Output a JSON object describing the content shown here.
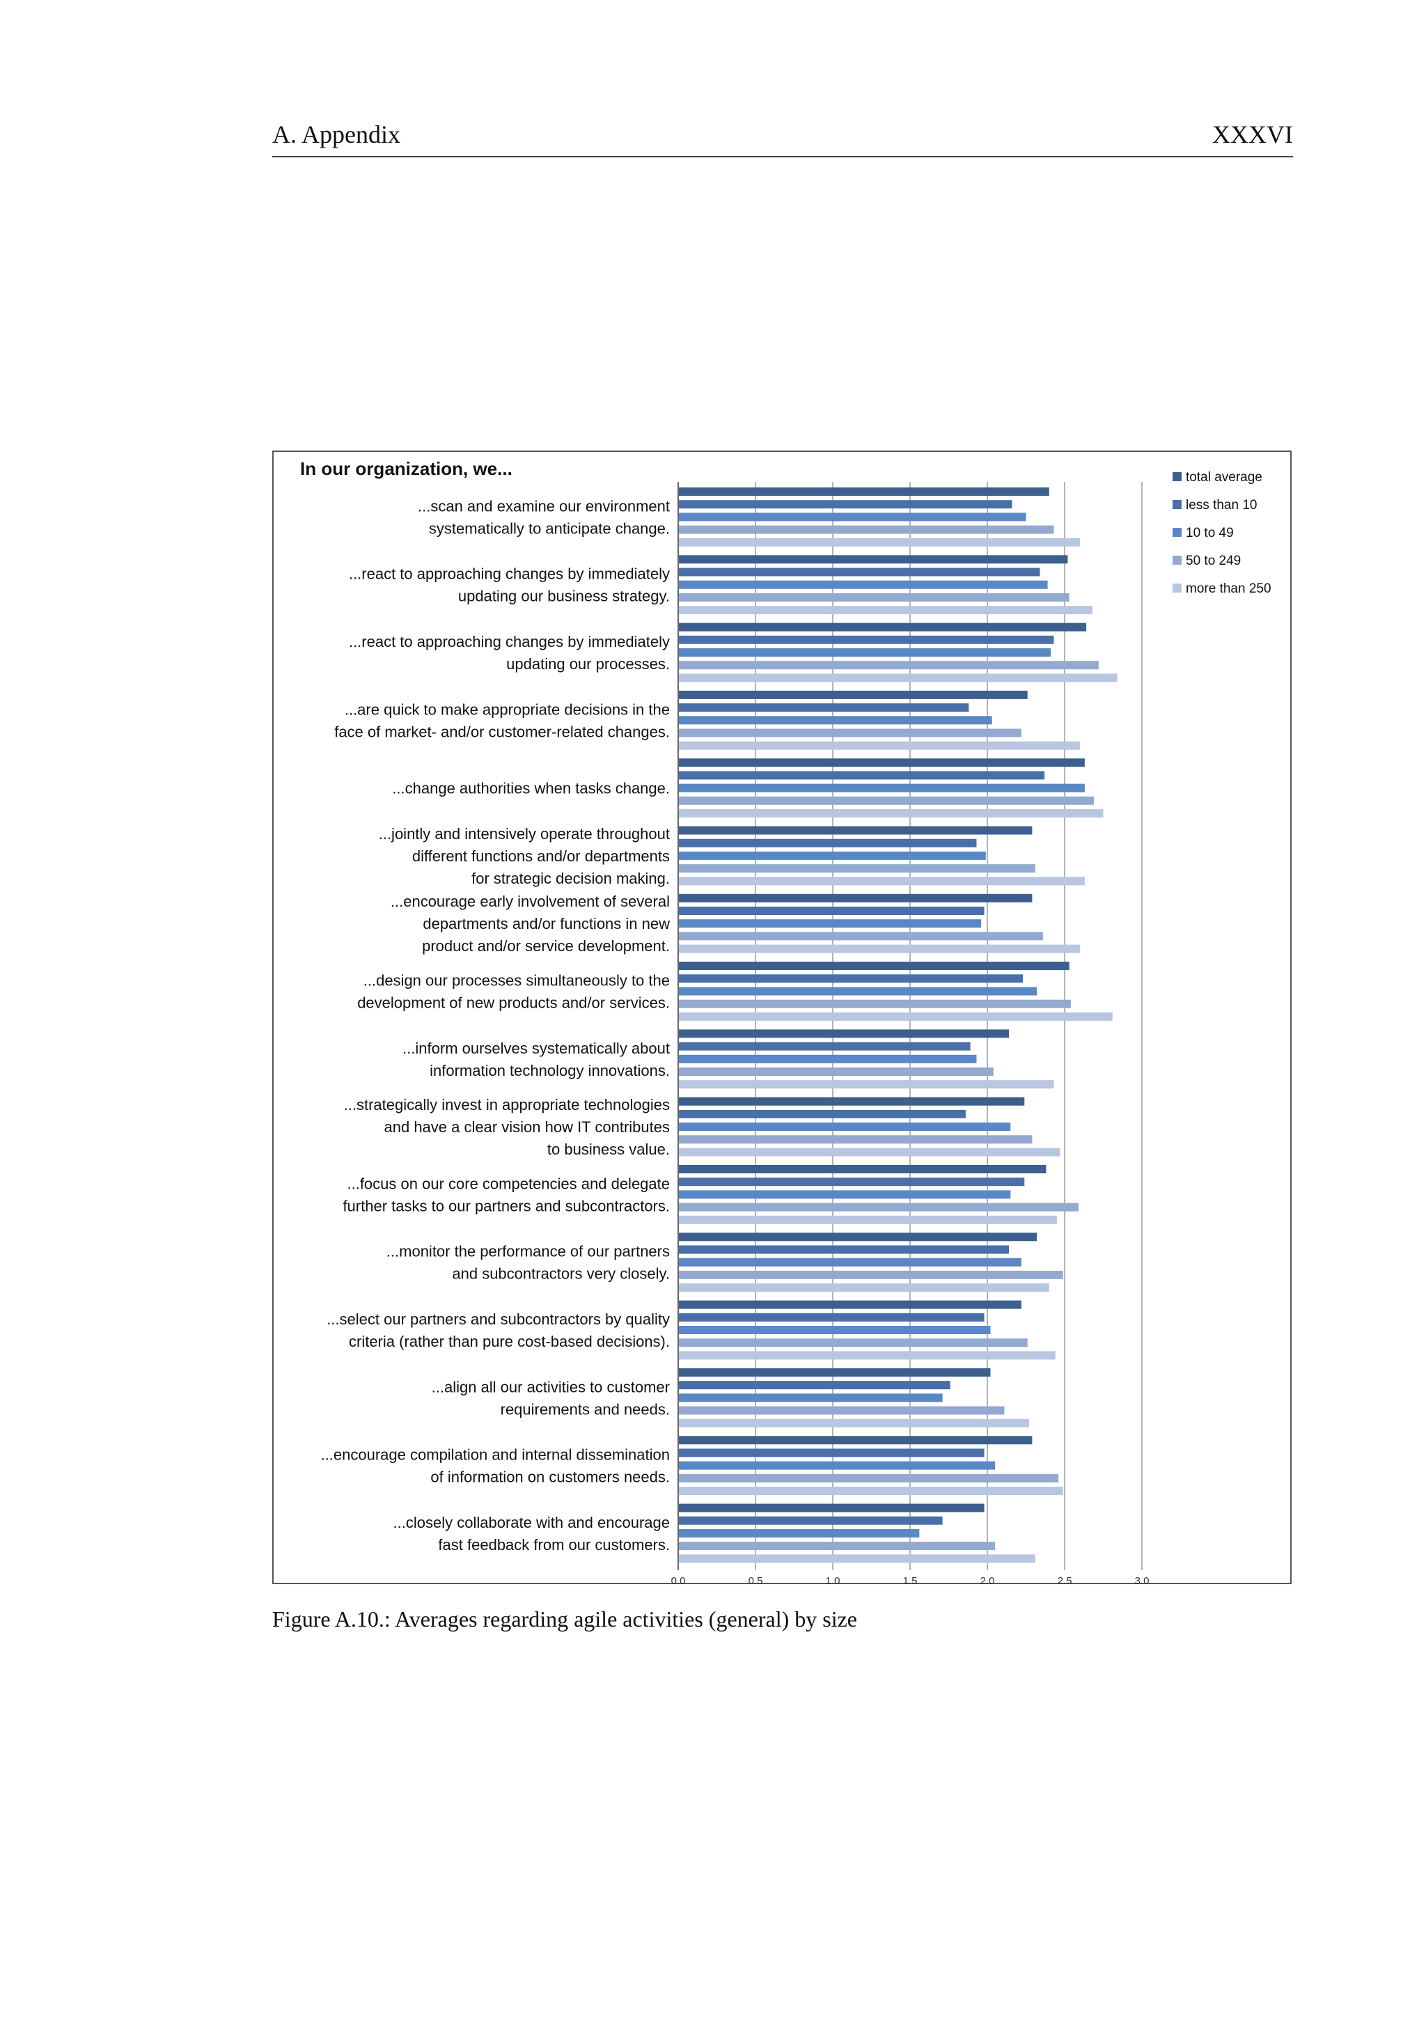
{
  "page": {
    "header_left": "A.  Appendix",
    "header_right": "XXXVI",
    "caption": "Figure A.10.: Averages regarding agile activities (general) by size"
  },
  "chart_data": {
    "type": "bar",
    "orientation": "horizontal",
    "title": "In our organization, we...",
    "xlim": [
      0,
      3.0
    ],
    "xticks": [
      "0.0",
      "0.5",
      "1.0",
      "1.5",
      "2.0",
      "2.5",
      "3.0"
    ],
    "grid": true,
    "legend_position": "top-right",
    "categories": [
      [
        "...scan and examine our environment",
        "systematically to anticipate change."
      ],
      [
        "...react to approaching changes by immediately",
        "updating our business strategy."
      ],
      [
        "...react to approaching changes by immediately",
        "updating our processes."
      ],
      [
        "...are quick to make appropriate decisions in the",
        "face of market- and/or customer-related changes."
      ],
      [
        "...change authorities when tasks change."
      ],
      [
        "...jointly and intensively operate throughout",
        "different functions and/or departments",
        "for strategic decision making."
      ],
      [
        "...encourage early involvement of several",
        "departments and/or functions in new",
        "product and/or service development."
      ],
      [
        "...design our processes simultaneously to the",
        "development of new products and/or services."
      ],
      [
        "...inform ourselves systematically about",
        "information technology innovations."
      ],
      [
        "...strategically invest in appropriate technologies",
        "and have a clear vision how IT contributes",
        "to business value."
      ],
      [
        "...focus on our core competencies and delegate",
        "further tasks to our partners and subcontractors."
      ],
      [
        "...monitor the performance of our partners",
        "and subcontractors very closely."
      ],
      [
        "...select our partners and subcontractors by quality",
        "criteria (rather than pure cost-based decisions)."
      ],
      [
        "...align all our activities to customer",
        "requirements and needs."
      ],
      [
        "...encourage compilation and internal dissemination",
        "of information on customers needs."
      ],
      [
        "...closely collaborate with and encourage",
        "fast feedback from our customers."
      ]
    ],
    "series": [
      {
        "name": "total average",
        "color": "#3c5f8e",
        "values": [
          2.4,
          2.52,
          2.64,
          2.26,
          2.63,
          2.29,
          2.29,
          2.53,
          2.14,
          2.24,
          2.38,
          2.32,
          2.22,
          2.02,
          2.29,
          1.98
        ]
      },
      {
        "name": "less than 10",
        "color": "#4a6fa8",
        "values": [
          2.16,
          2.34,
          2.43,
          1.88,
          2.37,
          1.93,
          1.98,
          2.23,
          1.89,
          1.86,
          2.24,
          2.14,
          1.98,
          1.76,
          1.98,
          1.71
        ]
      },
      {
        "name": "10 to 49",
        "color": "#5a87c5",
        "values": [
          2.25,
          2.39,
          2.41,
          2.03,
          2.63,
          1.99,
          1.96,
          2.32,
          1.93,
          2.15,
          2.15,
          2.22,
          2.02,
          1.71,
          2.05,
          1.56
        ]
      },
      {
        "name": "50 to 249",
        "color": "#94a9cf",
        "values": [
          2.43,
          2.53,
          2.72,
          2.22,
          2.69,
          2.31,
          2.36,
          2.54,
          2.04,
          2.29,
          2.59,
          2.49,
          2.26,
          2.11,
          2.46,
          2.05
        ]
      },
      {
        "name": "more than 250",
        "color": "#b8c6e2",
        "values": [
          2.6,
          2.68,
          2.84,
          2.6,
          2.75,
          2.63,
          2.6,
          2.81,
          2.43,
          2.47,
          2.45,
          2.4,
          2.44,
          2.27,
          2.49,
          2.31
        ]
      }
    ]
  }
}
